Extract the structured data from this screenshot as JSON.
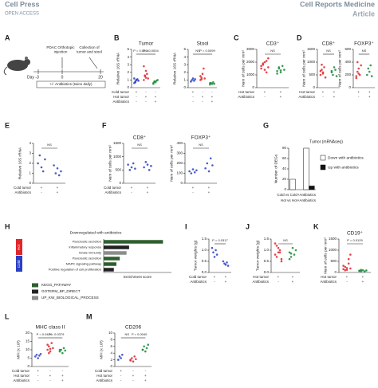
{
  "header": {
    "brand": "Cell Press",
    "access": "OPEN ACCESS",
    "journal": "Cell Reports Medicine",
    "article_type": "Article"
  },
  "schematic": {
    "letter": "A",
    "day_start": "Day -3",
    "day_zero": "0",
    "day_end": "20",
    "injection": "PDAC Orthotopic\ninjection",
    "collection": "Collection of\ntumor and stool",
    "treatment": "+/- Antibiotics (twice daily)"
  },
  "panels": [
    {
      "letter": "B",
      "type": "scatter",
      "charts": [
        {
          "title": "Tumor",
          "ylabel": "Relative 16S rRNA",
          "ylim": [
            0,
            5
          ],
          "yticks": [
            0,
            1,
            2,
            3,
            4,
            5
          ],
          "groups": [
            {
              "color": "#2b3fc4",
              "values": [
                0.6,
                0.8,
                1.0,
                1.1,
                0.9,
                1.2,
                0.7,
                1.0
              ]
            },
            {
              "color": "#e0262b",
              "values": [
                1.0,
                1.5,
                2.2,
                1.8,
                1.2,
                2.8,
                1.6,
                1.3
              ]
            },
            {
              "color": "#1a8a3a",
              "values": [
                0.6,
                0.8,
                0.7,
                0.9,
                1.0,
                0.5,
                0.8
              ]
            }
          ],
          "annotations": [
            "P = 0.0001",
            "P = 0.0004"
          ]
        },
        {
          "title": "Stool",
          "ylabel": "Relative 16S rRNA",
          "ylim": [
            0,
            5
          ],
          "yticks": [
            0,
            1,
            2,
            3,
            4,
            5
          ],
          "groups": [
            {
              "color": "#2b3fc4",
              "values": [
                0.8,
                1.0,
                1.2,
                0.9,
                1.1
              ]
            },
            {
              "color": "#e0262b",
              "values": [
                1.0,
                1.3,
                1.8,
                2.5,
                1.2,
                1.5,
                1.1
              ]
            },
            {
              "color": "#1a8a3a",
              "values": [
                0.4,
                0.6,
                0.5,
                0.7,
                0.5,
                0.6
              ]
            }
          ],
          "annotations": [
            "NS",
            "P = 0.0099"
          ]
        }
      ],
      "rows": [
        {
          "label": "Cold tumor",
          "signs": [
            "+",
            "-",
            "-"
          ]
        },
        {
          "label": "Hot tumor",
          "signs": [
            "-",
            "+",
            "+"
          ]
        },
        {
          "label": "Antibiotics",
          "signs": [
            "-",
            "-",
            "+"
          ]
        }
      ]
    },
    {
      "letter": "C",
      "type": "scatter",
      "charts": [
        {
          "title": "CD3⁺",
          "ylabel": "Num of cells per mm²",
          "ylim": [
            0,
            3000
          ],
          "yticks": [
            0,
            1000,
            2000,
            3000
          ],
          "groups": [
            {
              "color": "#e0262b",
              "values": [
                1500,
                1800,
                2000,
                1200,
                2300,
                1700,
                1900,
                1400,
                2100,
                1600
              ]
            },
            {
              "color": "#1a8a3a",
              "values": [
                1300,
                1500,
                1200,
                1700,
                1400,
                1100,
                1600,
                1350
              ]
            }
          ],
          "annotations": [
            "NS"
          ]
        }
      ],
      "rows": [
        {
          "label": "Hot tumor",
          "signs": [
            "+",
            "+"
          ]
        },
        {
          "label": "Antibiotics",
          "signs": [
            "-",
            "+"
          ]
        }
      ]
    },
    {
      "letter": "D",
      "type": "scatter",
      "charts": [
        {
          "title": "CD8⁺",
          "ylabel": "Num of cells per mm²",
          "ylim": [
            0,
            1500
          ],
          "yticks": [
            0,
            500,
            1000,
            1500
          ],
          "groups": [
            {
              "color": "#e0262b",
              "values": [
                500,
                700,
                600,
                800,
                400,
                650,
                900,
                550
              ]
            },
            {
              "color": "#1a8a3a",
              "values": [
                600,
                500,
                800,
                700,
                450,
                650
              ]
            }
          ],
          "annotations": [
            "NS"
          ]
        },
        {
          "title": "FOXP3⁺",
          "ylabel": "Num of cells per mm²",
          "ylim": [
            0,
            600
          ],
          "yticks": [
            0,
            200,
            400,
            600
          ],
          "groups": [
            {
              "color": "#e0262b",
              "values": [
                150,
                250,
                300,
                200,
                350,
                180,
                400,
                220
              ]
            },
            {
              "color": "#1a8a3a",
              "values": [
                200,
                300,
                250,
                350,
                180
              ]
            }
          ],
          "annotations": [
            "NS"
          ]
        }
      ],
      "rows": [
        {
          "label": "Hot tumor",
          "signs": [
            "+",
            "+"
          ]
        },
        {
          "label": "Antibiotics",
          "signs": [
            "-",
            "+"
          ]
        }
      ]
    },
    {
      "letter": "E",
      "type": "scatter",
      "charts": [
        {
          "title": "",
          "ylabel": "Relative 16S rRNA",
          "ylim": [
            0,
            4
          ],
          "yticks": [
            0,
            1,
            2,
            3,
            4
          ],
          "groups": [
            {
              "color": "#2b3fc4",
              "values": [
                2.0,
                2.8,
                1.6,
                1.2,
                2.4
              ]
            },
            {
              "color": "#2b3fc4",
              "values": [
                1.8,
                1.0,
                1.5,
                0.8,
                1.2
              ]
            }
          ],
          "annotations": [
            "NS"
          ]
        }
      ],
      "rows": [
        {
          "label": "Cold tumor",
          "signs": [
            "+",
            "+"
          ]
        },
        {
          "label": "Antibiotics",
          "signs": [
            "-",
            "+"
          ]
        }
      ]
    },
    {
      "letter": "F",
      "type": "scatter",
      "charts": [
        {
          "title": "CD8⁺",
          "ylabel": "Num of cells per mm²",
          "ylim": [
            0,
            1500
          ],
          "yticks": [
            0,
            500,
            1000,
            1500
          ],
          "groups": [
            {
              "color": "#2b3fc4",
              "values": [
                700,
                500,
                600,
                750,
                550
              ]
            },
            {
              "color": "#2b3fc4",
              "values": [
                600,
                800,
                700,
                500,
                650
              ]
            }
          ],
          "annotations": [
            "NS"
          ]
        },
        {
          "title": "FOXP3⁺",
          "ylabel": "Num of cells per mm²",
          "ylim": [
            0,
            400
          ],
          "yticks": [
            0,
            100,
            200,
            300,
            400
          ],
          "groups": [
            {
              "color": "#2b3fc4",
              "values": [
                120,
                100,
                140,
                110,
                130
              ]
            },
            {
              "color": "#2b3fc4",
              "values": [
                150,
                200,
                120,
                250,
                180
              ]
            }
          ],
          "annotations": [
            "NS"
          ]
        }
      ],
      "rows": [
        {
          "label": "Cold tumor",
          "signs": [
            "+",
            "+"
          ]
        },
        {
          "label": "Antibiotics",
          "signs": [
            "-",
            "+"
          ]
        }
      ]
    },
    {
      "letter": "G",
      "type": "bar",
      "title": "Tumor (mRNAseq)",
      "ylabel": "Number of DEGs",
      "categories": [
        "Cold vs Cold+Antibiotics",
        "Hot vs Hot+Antibiotics"
      ],
      "series": [
        {
          "name": "Down with antibiotics",
          "color": "#ffffff",
          "values": [
            20,
            80
          ]
        },
        {
          "name": "Up with antibiotics",
          "color": "#111111",
          "values": [
            0,
            7
          ]
        }
      ],
      "ylim": [
        0,
        80
      ],
      "yticks": [
        0,
        20,
        40,
        60,
        80
      ]
    },
    {
      "letter": "H",
      "type": "hbar",
      "title": "Downregulated with antibiotics",
      "xlabel": "Enrichment score",
      "groups": [
        "Hot",
        "Cold"
      ],
      "group_colors": [
        "#e0262b",
        "#2b3fc4"
      ],
      "terms": [
        "Pancreatic secretion",
        "Inflammatory response",
        "Innate immunity",
        "Pancreatic secretion",
        "MAPK signaling pathway",
        "Positive regulation of cell proliferation"
      ],
      "values": [
        7.0,
        3.0,
        2.7,
        1.9,
        1.5,
        1.2
      ],
      "bar_colors": [
        "#2e5e2e",
        "#222222",
        "#8c8c8c",
        "#2e5e2e",
        "#2e5e2e",
        "#222222"
      ],
      "xlim": [
        0,
        8
      ],
      "legend": [
        {
          "name": "KEGG_PATHWAY",
          "color": "#2e5e2e"
        },
        {
          "name": "GOTERM_BP_DIRECT",
          "color": "#222222"
        },
        {
          "name": "UP_KW_BIOLOGICAL_PROCESS",
          "color": "#8c8c8c"
        }
      ]
    },
    {
      "letter": "I",
      "type": "scatter",
      "charts": [
        {
          "title": "",
          "ylabel": "Tumor weights (g)",
          "ylim": [
            0,
            1.5
          ],
          "yticks": [
            {
              "value": 0,
              "label": "0.0"
            },
            0.5,
            {
              "value": 1,
              "label": "1.0"
            },
            1.5
          ],
          "groups": [
            {
              "color": "#2b3fc4",
              "values": [
                1.1,
                0.9,
                0.7,
                1.0,
                0.8
              ]
            },
            {
              "color": "#2b3fc4",
              "values": [
                0.5,
                0.4,
                0.35,
                0.45,
                0.3
              ]
            }
          ],
          "annotations": [
            "P = 0.0317"
          ]
        }
      ],
      "rows": [
        {
          "label": "Cold tumor",
          "signs": [
            "+",
            "+"
          ]
        },
        {
          "label": "Antibiotics",
          "signs": [
            "-",
            "+"
          ]
        }
      ]
    },
    {
      "letter": "J",
      "type": "scatter",
      "charts": [
        {
          "title": "",
          "ylabel": "Tumor weights (g)",
          "ylim": [
            0,
            1.5
          ],
          "yticks": [
            {
              "value": 0,
              "label": "0.0"
            },
            0.5,
            {
              "value": 1,
              "label": "1.0"
            },
            1.5
          ],
          "groups": [
            {
              "color": "#e0262b",
              "values": [
                0.8,
                1.2,
                0.9,
                1.0,
                0.6,
                1.3,
                0.7,
                1.1,
                0.9,
                0.5
              ]
            },
            {
              "color": "#1a8a3a",
              "values": [
                0.9,
                0.7,
                1.1,
                0.8,
                1.0,
                0.6,
                0.85
              ]
            }
          ],
          "annotations": [
            "NS"
          ]
        }
      ],
      "rows": [
        {
          "label": "Hot tumor",
          "signs": [
            "+",
            "+"
          ]
        },
        {
          "label": "Antibiotics",
          "signs": [
            "-",
            "+"
          ]
        }
      ]
    },
    {
      "letter": "K",
      "type": "scatter",
      "charts": [
        {
          "title": "CD19⁺",
          "ylabel": "Num of cells per mm²",
          "ylim": [
            0,
            1500
          ],
          "yticks": [
            0,
            500,
            1000,
            1500
          ],
          "groups": [
            {
              "color": "#e0262b",
              "values": [
                300,
                100,
                200,
                400,
                800,
                150,
                250,
                120,
                600,
                180
              ]
            },
            {
              "color": "#1a8a3a",
              "values": [
                80,
                60,
                100,
                50,
                90,
                70,
                120
              ]
            }
          ],
          "annotations": [
            "P = 0.0129"
          ]
        }
      ],
      "rows": [
        {
          "label": "Hot tumor",
          "signs": [
            "+",
            "+"
          ]
        },
        {
          "label": "Antibiotics",
          "signs": [
            "-",
            "+"
          ]
        }
      ]
    },
    {
      "letter": "L",
      "type": "scatter",
      "charts": [
        {
          "title": "MHC class II",
          "ylabel": "MFI (x 10³)",
          "ylim": [
            0,
            20
          ],
          "yticks": [
            0,
            5,
            10,
            15,
            20
          ],
          "groups": [
            {
              "color": "#2b3fc4",
              "values": [
                6,
                7,
                5,
                6.5,
                7.5
              ]
            },
            {
              "color": "#e0262b",
              "values": [
                10,
                12,
                9,
                14,
                11,
                13,
                8,
                10.5
              ]
            },
            {
              "color": "#1a8a3a",
              "values": [
                9,
                10,
                8,
                11,
                9.5,
                10
              ]
            }
          ],
          "annotations": [
            "P = 0.0424",
            "P = 0.0379"
          ]
        }
      ],
      "rows": [
        {
          "label": "Cold tumor",
          "signs": [
            "+",
            "-",
            "-"
          ]
        },
        {
          "label": "Hot tumor",
          "signs": [
            "-",
            "+",
            "+"
          ]
        },
        {
          "label": "Antibiotics",
          "signs": [
            "-",
            "-",
            "+"
          ]
        }
      ]
    },
    {
      "letter": "M",
      "type": "scatter",
      "charts": [
        {
          "title": "CD206",
          "ylabel": "MFI (x 10³)",
          "ylim": [
            0,
            10
          ],
          "yticks": [
            0,
            2,
            4,
            6,
            8,
            10
          ],
          "groups": [
            {
              "color": "#2b3fc4",
              "values": [
                2,
                3,
                2.5,
                3.5
              ]
            },
            {
              "color": "#e0262b",
              "values": [
                2,
                2.5,
                1.5,
                3,
                2.2,
                1.8
              ]
            },
            {
              "color": "#1a8a3a",
              "values": [
                5,
                6,
                4.5,
                5.5,
                6.5,
                5
              ]
            }
          ],
          "annotations": [
            "NS",
            "P = 0.0040"
          ]
        }
      ],
      "rows": [
        {
          "label": "Cold tumor",
          "signs": [
            "+",
            "-",
            "-"
          ]
        },
        {
          "label": "Hot tumor",
          "signs": [
            "-",
            "+",
            "+"
          ]
        },
        {
          "label": "Antibiotics",
          "signs": [
            "-",
            "-",
            "+"
          ]
        }
      ]
    }
  ]
}
